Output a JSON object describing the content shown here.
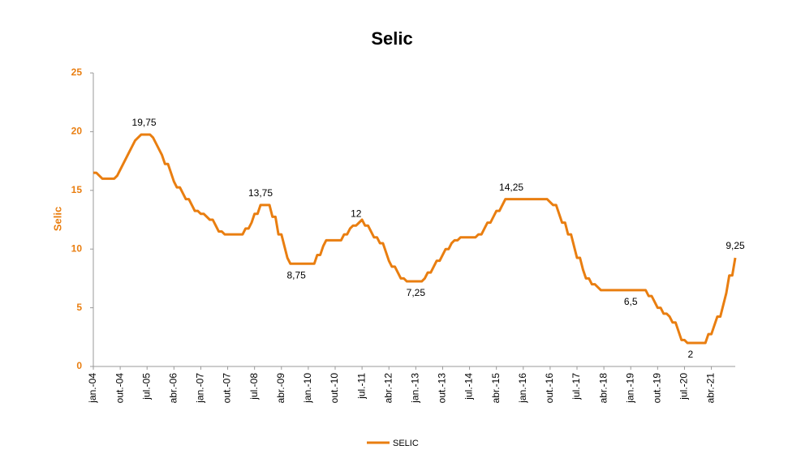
{
  "chart_data": {
    "type": "line",
    "title": "Selic",
    "y_label": "Selic",
    "categories": [
      "jan.-04",
      null,
      null,
      null,
      null,
      null,
      null,
      null,
      null,
      "out.-04",
      null,
      null,
      null,
      null,
      null,
      null,
      null,
      null,
      "jul.-05",
      null,
      null,
      null,
      null,
      null,
      null,
      null,
      null,
      "abr.-06",
      null,
      null,
      null,
      null,
      null,
      null,
      null,
      null,
      "jan.-07",
      null,
      null,
      null,
      null,
      null,
      null,
      null,
      null,
      "out.-07",
      null,
      null,
      null,
      null,
      null,
      null,
      null,
      null,
      "jul.-08",
      null,
      null,
      null,
      null,
      null,
      null,
      null,
      null,
      "abr.-09",
      null,
      null,
      null,
      null,
      null,
      null,
      null,
      null,
      "jan.-10",
      null,
      null,
      null,
      null,
      null,
      null,
      null,
      null,
      "out.-10",
      null,
      null,
      null,
      null,
      null,
      null,
      null,
      null,
      "jul.-11",
      null,
      null,
      null,
      null,
      null,
      null,
      null,
      null,
      "abr.-12",
      null,
      null,
      null,
      null,
      null,
      null,
      null,
      null,
      "jan.-13",
      null,
      null,
      null,
      null,
      null,
      null,
      null,
      null,
      "out.-13",
      null,
      null,
      null,
      null,
      null,
      null,
      null,
      null,
      "jul.-14",
      null,
      null,
      null,
      null,
      null,
      null,
      null,
      null,
      "abr.-15",
      null,
      null,
      null,
      null,
      null,
      null,
      null,
      null,
      "jan.-16",
      null,
      null,
      null,
      null,
      null,
      null,
      null,
      null,
      "out.-16",
      null,
      null,
      null,
      null,
      null,
      null,
      null,
      null,
      "jul.-17",
      null,
      null,
      null,
      null,
      null,
      null,
      null,
      null,
      "abr.-18",
      null,
      null,
      null,
      null,
      null,
      null,
      null,
      null,
      "jan.-19",
      null,
      null,
      null,
      null,
      null,
      null,
      null,
      null,
      "out.-19",
      null,
      null,
      null,
      null,
      null,
      null,
      null,
      null,
      "jul.-20",
      null,
      null,
      null,
      null,
      null,
      null,
      null,
      null,
      "abr.-21",
      null,
      null,
      null,
      null,
      null,
      null,
      null,
      null
    ],
    "series": [
      {
        "name": "SELIC",
        "color": "#e97e10",
        "values": [
          16.5,
          16.5,
          16.25,
          16,
          16,
          16,
          16,
          16,
          16.25,
          16.75,
          17.25,
          17.75,
          18.25,
          18.75,
          19.25,
          19.5,
          19.75,
          19.75,
          19.75,
          19.75,
          19.5,
          19,
          18.5,
          18,
          17.25,
          17.25,
          16.5,
          15.75,
          15.25,
          15.25,
          14.75,
          14.25,
          14.25,
          13.75,
          13.25,
          13.25,
          13,
          13,
          12.75,
          12.5,
          12.5,
          12,
          11.5,
          11.5,
          11.25,
          11.25,
          11.25,
          11.25,
          11.25,
          11.25,
          11.25,
          11.75,
          11.75,
          12.25,
          13,
          13,
          13.75,
          13.75,
          13.75,
          13.75,
          12.75,
          12.75,
          11.25,
          11.25,
          10.25,
          9.25,
          8.75,
          8.75,
          8.75,
          8.75,
          8.75,
          8.75,
          8.75,
          8.75,
          8.75,
          9.5,
          9.5,
          10.25,
          10.75,
          10.75,
          10.75,
          10.75,
          10.75,
          10.75,
          11.25,
          11.25,
          11.75,
          12,
          12,
          12.25,
          12.5,
          12,
          12,
          11.5,
          11,
          11,
          10.5,
          10.5,
          9.75,
          9,
          8.5,
          8.5,
          8,
          7.5,
          7.5,
          7.25,
          7.25,
          7.25,
          7.25,
          7.25,
          7.25,
          7.5,
          8,
          8,
          8.5,
          9,
          9,
          9.5,
          10,
          10,
          10.5,
          10.75,
          10.75,
          11,
          11,
          11,
          11,
          11,
          11,
          11.25,
          11.25,
          11.75,
          12.25,
          12.25,
          12.75,
          13.25,
          13.25,
          13.75,
          14.25,
          14.25,
          14.25,
          14.25,
          14.25,
          14.25,
          14.25,
          14.25,
          14.25,
          14.25,
          14.25,
          14.25,
          14.25,
          14.25,
          14.25,
          14,
          13.75,
          13.75,
          13,
          12.25,
          12.25,
          11.25,
          11.25,
          10.25,
          9.25,
          9.25,
          8.25,
          7.5,
          7.5,
          7,
          7,
          6.75,
          6.5,
          6.5,
          6.5,
          6.5,
          6.5,
          6.5,
          6.5,
          6.5,
          6.5,
          6.5,
          6.5,
          6.5,
          6.5,
          6.5,
          6.5,
          6.5,
          6,
          6,
          5.5,
          5,
          5,
          4.5,
          4.5,
          4.25,
          3.75,
          3.75,
          3,
          2.25,
          2.25,
          2,
          2,
          2,
          2,
          2,
          2,
          2,
          2.75,
          2.75,
          3.5,
          4.25,
          4.25,
          5.25,
          6.25,
          7.75,
          7.75,
          9.25
        ],
        "value_labels": [
          null,
          null,
          null,
          null,
          null,
          null,
          null,
          null,
          null,
          null,
          null,
          null,
          null,
          null,
          null,
          null,
          null,
          "19,75",
          null,
          null,
          null,
          null,
          null,
          null,
          null,
          null,
          null,
          null,
          null,
          null,
          null,
          null,
          null,
          null,
          null,
          null,
          null,
          null,
          null,
          null,
          null,
          null,
          null,
          null,
          null,
          null,
          null,
          null,
          null,
          null,
          null,
          null,
          null,
          null,
          null,
          null,
          "13,75",
          null,
          null,
          null,
          null,
          null,
          null,
          null,
          null,
          null,
          null,
          null,
          "8,75",
          null,
          null,
          null,
          null,
          null,
          null,
          null,
          null,
          null,
          null,
          null,
          null,
          null,
          null,
          null,
          null,
          null,
          null,
          null,
          "12",
          null,
          null,
          null,
          null,
          null,
          null,
          null,
          null,
          null,
          null,
          null,
          null,
          null,
          null,
          null,
          null,
          null,
          null,
          null,
          "7,25",
          null,
          null,
          null,
          null,
          null,
          null,
          null,
          null,
          null,
          null,
          null,
          null,
          null,
          null,
          null,
          null,
          null,
          null,
          null,
          null,
          null,
          null,
          null,
          null,
          null,
          null,
          null,
          null,
          null,
          null,
          null,
          "14,25",
          null,
          null,
          null,
          null,
          null,
          null,
          null,
          null,
          null,
          null,
          null,
          null,
          null,
          null,
          null,
          null,
          null,
          null,
          null,
          null,
          null,
          null,
          null,
          null,
          null,
          null,
          null,
          null,
          null,
          null,
          null,
          null,
          null,
          null,
          null,
          null,
          null,
          null,
          null,
          "6,5",
          null,
          null,
          null,
          null,
          null,
          null,
          null,
          null,
          null,
          null,
          null,
          null,
          null,
          null,
          null,
          null,
          null,
          null,
          null,
          "2",
          null,
          null,
          null,
          null,
          null,
          null,
          null,
          null,
          null,
          null,
          null,
          null,
          null,
          null,
          "9,25"
        ]
      }
    ],
    "ylim": [
      0,
      25
    ],
    "yticks": [
      0,
      5,
      10,
      15,
      20,
      25
    ],
    "legend": "bottom"
  }
}
